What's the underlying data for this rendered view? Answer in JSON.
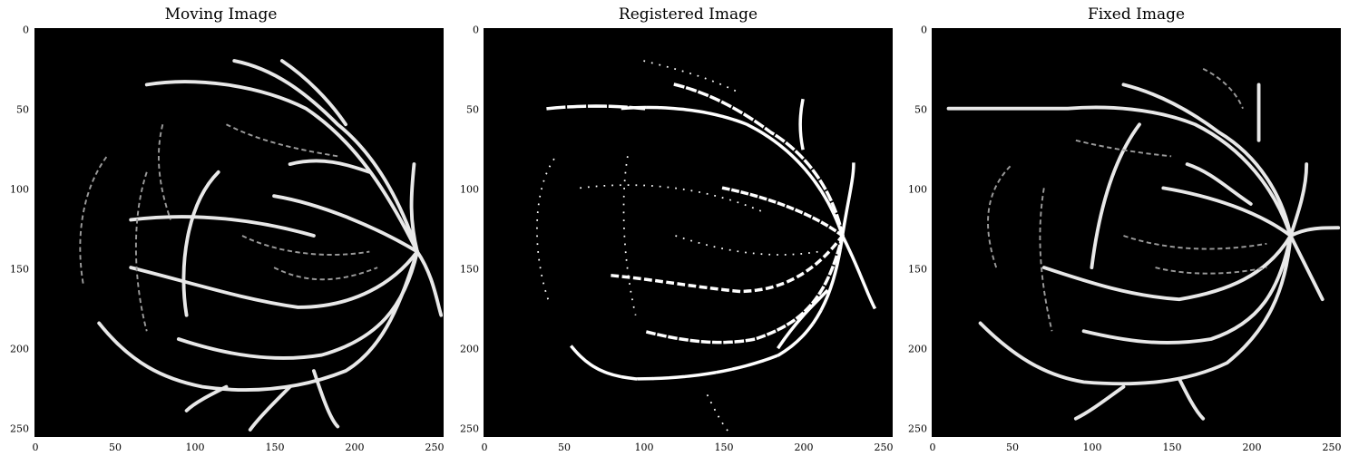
{
  "panels": [
    {
      "title": "Moving Image"
    },
    {
      "title": "Registered Image"
    },
    {
      "title": "Fixed Image"
    }
  ],
  "axes": {
    "xticks": [
      "0",
      "50",
      "100",
      "150",
      "200",
      "250"
    ],
    "yticks": [
      "0",
      "50",
      "100",
      "150",
      "200",
      "250"
    ],
    "range": [
      0,
      256
    ]
  },
  "colors": {
    "background": "#000000",
    "vessel": "#ffffff"
  }
}
